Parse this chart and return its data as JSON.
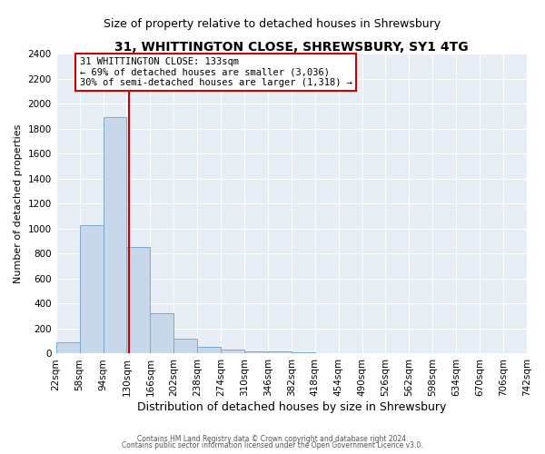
{
  "title": "31, WHITTINGTON CLOSE, SHREWSBURY, SY1 4TG",
  "subtitle": "Size of property relative to detached houses in Shrewsbury",
  "xlabel": "Distribution of detached houses by size in Shrewsbury",
  "ylabel": "Number of detached properties",
  "bin_edges": [
    22,
    58,
    94,
    130,
    166,
    202,
    238,
    274,
    310,
    346,
    382,
    418,
    454,
    490,
    526,
    562,
    598,
    634,
    670,
    706,
    742
  ],
  "bar_heights": [
    90,
    1025,
    1890,
    855,
    320,
    120,
    55,
    30,
    20,
    15,
    10,
    5,
    3,
    2,
    2,
    1,
    1,
    1,
    1,
    1
  ],
  "bar_color": "#c8d8ea",
  "bar_edge_color": "#7aaacf",
  "vline_x": 133,
  "vline_color": "#cc0000",
  "annotation_line1": "31 WHITTINGTON CLOSE: 133sqm",
  "annotation_line2": "← 69% of detached houses are smaller (3,036)",
  "annotation_line3": "30% of semi-detached houses are larger (1,318) →",
  "annotation_box_color": "white",
  "annotation_box_edge_color": "#cc0000",
  "ylim": [
    0,
    2400
  ],
  "yticks": [
    0,
    200,
    400,
    600,
    800,
    1000,
    1200,
    1400,
    1600,
    1800,
    2000,
    2200,
    2400
  ],
  "tick_labels": [
    "22sqm",
    "58sqm",
    "94sqm",
    "130sqm",
    "166sqm",
    "202sqm",
    "238sqm",
    "274sqm",
    "310sqm",
    "346sqm",
    "382sqm",
    "418sqm",
    "454sqm",
    "490sqm",
    "526sqm",
    "562sqm",
    "598sqm",
    "634sqm",
    "670sqm",
    "706sqm",
    "742sqm"
  ],
  "footer1": "Contains HM Land Registry data © Crown copyright and database right 2024.",
  "footer2": "Contains public sector information licensed under the Open Government Licence v3.0.",
  "fig_bg_color": "#ffffff",
  "plot_bg_color": "#e8eef5",
  "grid_color": "#ffffff",
  "title_fontsize": 10,
  "subtitle_fontsize": 9,
  "xlabel_fontsize": 9,
  "ylabel_fontsize": 8
}
